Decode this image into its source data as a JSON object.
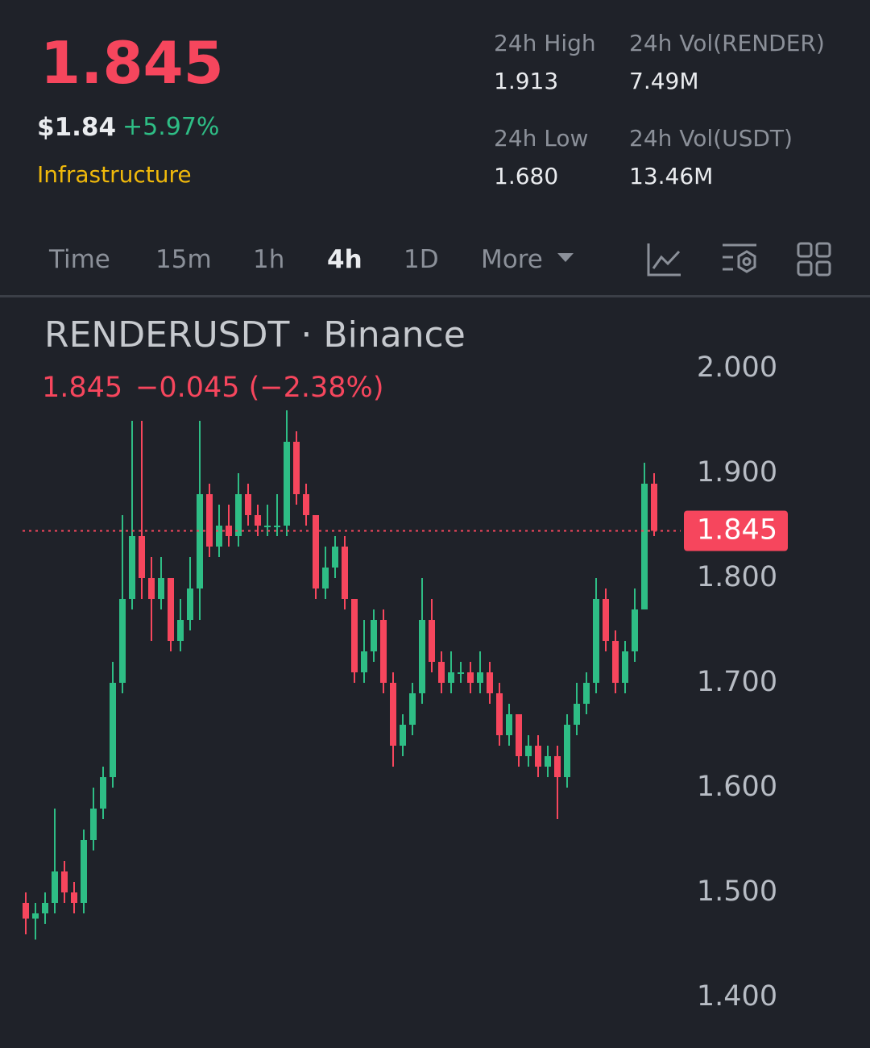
{
  "header": {
    "price": "1.845",
    "usd_price": "$1.84",
    "change": "+5.97%",
    "tag": "Infrastructure",
    "stats": [
      {
        "label": "24h High",
        "value": "1.913"
      },
      {
        "label": "24h Vol(RENDER)",
        "value": "7.49M"
      },
      {
        "label": "24h Low",
        "value": "1.680"
      },
      {
        "label": "24h Vol(USDT)",
        "value": "13.46M"
      }
    ]
  },
  "tabs": [
    "Time",
    "15m",
    "1h",
    "4h",
    "1D",
    "More"
  ],
  "chart_data": {
    "type": "candlestick",
    "title": "RENDERUSDT · Binance",
    "legend_price": "1.845",
    "legend_change": "−0.045 (−2.38%)",
    "up_color": "#2ebd85",
    "down_color": "#f6465d",
    "ylim": [
      1.35,
      2.06
    ],
    "yticks": [
      {
        "value": 1.4,
        "label": "1.400"
      },
      {
        "value": 1.5,
        "label": "1.500"
      },
      {
        "value": 1.6,
        "label": "1.600"
      },
      {
        "value": 1.7,
        "label": "1.700"
      },
      {
        "value": 1.8,
        "label": "1.800"
      },
      {
        "value": 1.9,
        "label": "1.900"
      },
      {
        "value": 2.0,
        "label": "2.000"
      }
    ],
    "last_price": 1.845,
    "open": [
      1.49,
      1.475,
      1.48,
      1.49,
      1.52,
      1.5,
      1.49,
      1.55,
      1.58,
      1.61,
      1.7,
      1.78,
      1.84,
      1.8,
      1.78,
      1.8,
      1.74,
      1.76,
      1.79,
      1.88,
      1.83,
      1.85,
      1.84,
      1.88,
      1.86,
      1.85,
      1.85,
      1.85,
      1.93,
      1.88,
      1.86,
      1.79,
      1.81,
      1.83,
      1.78,
      1.71,
      1.73,
      1.76,
      1.7,
      1.64,
      1.66,
      1.69,
      1.76,
      1.72,
      1.7,
      1.71,
      1.71,
      1.7,
      1.71,
      1.69,
      1.65,
      1.67,
      1.63,
      1.64,
      1.62,
      1.63,
      1.61,
      1.66,
      1.68,
      1.7,
      1.78,
      1.74,
      1.7,
      1.73,
      1.77,
      1.89
    ],
    "high": [
      1.5,
      1.49,
      1.5,
      1.58,
      1.53,
      1.51,
      1.56,
      1.6,
      1.62,
      1.72,
      1.86,
      1.95,
      1.95,
      1.82,
      1.82,
      1.8,
      1.78,
      1.82,
      1.95,
      1.89,
      1.87,
      1.87,
      1.9,
      1.89,
      1.87,
      1.87,
      1.88,
      1.96,
      1.94,
      1.89,
      1.86,
      1.83,
      1.84,
      1.84,
      1.78,
      1.76,
      1.77,
      1.77,
      1.71,
      1.67,
      1.7,
      1.8,
      1.78,
      1.73,
      1.73,
      1.72,
      1.72,
      1.73,
      1.72,
      1.7,
      1.68,
      1.67,
      1.65,
      1.65,
      1.64,
      1.64,
      1.67,
      1.7,
      1.71,
      1.8,
      1.79,
      1.75,
      1.74,
      1.79,
      1.91,
      1.9
    ],
    "low": [
      1.46,
      1.455,
      1.47,
      1.48,
      1.49,
      1.48,
      1.48,
      1.54,
      1.57,
      1.6,
      1.69,
      1.77,
      1.78,
      1.74,
      1.77,
      1.73,
      1.73,
      1.75,
      1.76,
      1.82,
      1.82,
      1.83,
      1.83,
      1.85,
      1.84,
      1.84,
      1.84,
      1.84,
      1.87,
      1.85,
      1.78,
      1.78,
      1.8,
      1.77,
      1.7,
      1.7,
      1.72,
      1.69,
      1.62,
      1.63,
      1.65,
      1.68,
      1.71,
      1.69,
      1.69,
      1.7,
      1.69,
      1.69,
      1.68,
      1.64,
      1.64,
      1.62,
      1.62,
      1.61,
      1.61,
      1.57,
      1.6,
      1.65,
      1.67,
      1.69,
      1.73,
      1.69,
      1.69,
      1.72,
      1.77,
      1.84
    ],
    "close": [
      1.475,
      1.48,
      1.49,
      1.52,
      1.5,
      1.49,
      1.55,
      1.58,
      1.61,
      1.7,
      1.78,
      1.84,
      1.8,
      1.78,
      1.8,
      1.74,
      1.76,
      1.79,
      1.88,
      1.83,
      1.85,
      1.84,
      1.88,
      1.86,
      1.85,
      1.85,
      1.85,
      1.93,
      1.88,
      1.86,
      1.79,
      1.81,
      1.83,
      1.78,
      1.71,
      1.73,
      1.76,
      1.7,
      1.64,
      1.66,
      1.69,
      1.76,
      1.72,
      1.7,
      1.71,
      1.71,
      1.7,
      1.71,
      1.69,
      1.65,
      1.67,
      1.63,
      1.64,
      1.62,
      1.63,
      1.61,
      1.66,
      1.68,
      1.7,
      1.78,
      1.74,
      1.7,
      1.73,
      1.77,
      1.89,
      1.845
    ]
  }
}
